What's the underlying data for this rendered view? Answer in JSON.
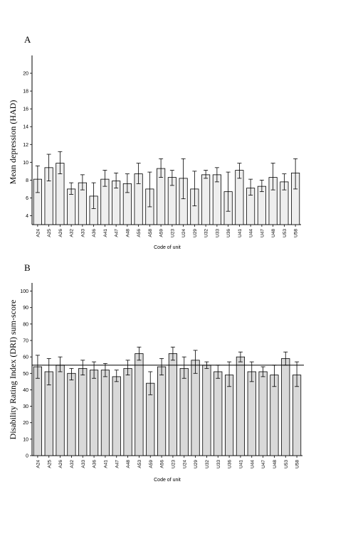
{
  "chart_data": [
    {
      "panel": "A",
      "type": "bar",
      "ylabel": "Mean depression (HAD)",
      "xlabel": "Code of unit",
      "ylim": [
        3,
        22
      ],
      "yticks": [
        4,
        6,
        8,
        10,
        12,
        14,
        16,
        18,
        20
      ],
      "bar_color": "#eeeeee",
      "categories": [
        "A24",
        "A25",
        "A26",
        "A32",
        "A33",
        "A36",
        "A41",
        "A47",
        "A48",
        "A56",
        "A58",
        "A59",
        "U23",
        "U24",
        "U29",
        "U32",
        "U33",
        "U36",
        "U41",
        "U44",
        "U47",
        "U48",
        "U53",
        "U58"
      ],
      "values": [
        8.1,
        9.4,
        9.9,
        7.0,
        7.7,
        6.2,
        8.1,
        7.9,
        7.6,
        8.7,
        7.0,
        9.3,
        8.3,
        8.2,
        7.0,
        8.6,
        8.6,
        6.7,
        9.1,
        7.1,
        7.3,
        8.3,
        7.8,
        8.8
      ],
      "err_low": [
        6.6,
        7.9,
        8.7,
        6.4,
        6.9,
        4.8,
        7.3,
        7.1,
        6.6,
        7.6,
        5.0,
        8.3,
        7.4,
        5.9,
        5.1,
        8.2,
        7.8,
        4.5,
        8.2,
        6.3,
        6.7,
        6.9,
        6.9,
        7.0
      ],
      "err_high": [
        9.6,
        10.9,
        11.2,
        7.7,
        8.6,
        7.7,
        9.1,
        8.8,
        8.7,
        9.9,
        8.9,
        10.4,
        9.1,
        10.4,
        9.0,
        9.1,
        9.4,
        8.9,
        9.9,
        8.1,
        8.0,
        9.9,
        8.7,
        10.4
      ],
      "reference_line": null
    },
    {
      "panel": "B",
      "type": "bar",
      "ylabel": "Disability Rating Index (DRI) sum-score",
      "xlabel": "Code of unit",
      "ylim": [
        0,
        105
      ],
      "yticks": [
        0,
        10,
        20,
        30,
        40,
        50,
        60,
        70,
        80,
        90,
        100
      ],
      "bar_color": "#d9d9d9",
      "categories": [
        "A24",
        "A25",
        "A26",
        "A32",
        "A33",
        "A36",
        "A41",
        "A47",
        "A48",
        "A53",
        "A59",
        "A56",
        "U23",
        "U24",
        "U29",
        "U32",
        "U33",
        "U36",
        "U41",
        "U44",
        "U47",
        "U48",
        "U53",
        "U58"
      ],
      "values": [
        54,
        51,
        55,
        50,
        53,
        52,
        52,
        48,
        53,
        62,
        44,
        54,
        62,
        53,
        58,
        55,
        51,
        49,
        60,
        51,
        51,
        49,
        59,
        49
      ],
      "err_low": [
        47,
        43,
        51,
        46,
        49,
        47,
        48,
        45,
        49,
        58,
        37,
        49,
        58,
        47,
        50,
        53,
        47,
        42,
        57,
        45,
        48,
        42,
        55,
        42
      ],
      "err_high": [
        61,
        59,
        60,
        53,
        58,
        57,
        56,
        52,
        58,
        66,
        51,
        59,
        66,
        60,
        64,
        57,
        55,
        57,
        63,
        57,
        54,
        55,
        63,
        57
      ],
      "reference_line": 55
    }
  ]
}
